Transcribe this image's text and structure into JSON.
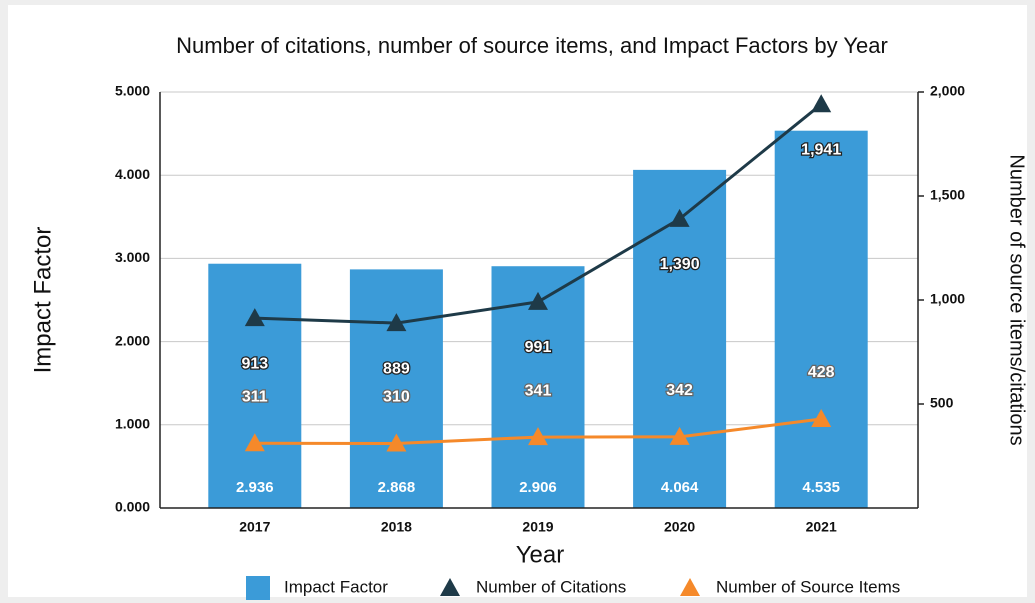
{
  "chart_data": {
    "type": "bar",
    "title": "Number of citations, number of source items, and Impact Factors by Year",
    "x_label": "Year",
    "y_label": "Impact Factor",
    "y2_label": "Number of source items/citations",
    "categories": [
      "2017",
      "2018",
      "2019",
      "2020",
      "2021"
    ],
    "series": [
      {
        "name": "Impact Factor",
        "type": "bar",
        "color": "#3b9bd8",
        "marker": "square",
        "values": [
          2.936,
          2.868,
          2.906,
          4.064,
          4.535
        ]
      },
      {
        "name": "Number of Citations",
        "type": "line",
        "axis": "y2",
        "color": "#1e3a48",
        "marker": "triangle",
        "label_position": "below",
        "values": [
          913,
          889,
          991,
          1390,
          1941
        ],
        "value_labels": [
          "913",
          "889",
          "991",
          "1,390",
          "1,941"
        ]
      },
      {
        "name": "Number of Source Items",
        "type": "line",
        "axis": "y2",
        "color": "#f5892a",
        "marker": "triangle",
        "label_position": "above",
        "values": [
          311,
          310,
          341,
          342,
          428
        ]
      }
    ],
    "ylim": [
      0,
      5
    ],
    "yticks": [
      {
        "value": 0,
        "label": "0.000"
      },
      {
        "value": 1,
        "label": "1.000"
      },
      {
        "value": 2,
        "label": "2.000"
      },
      {
        "value": 3,
        "label": "3.000"
      },
      {
        "value": 4,
        "label": "4.000"
      },
      {
        "value": 5,
        "label": "5.000"
      }
    ],
    "y2lim": [
      0,
      2000
    ],
    "y2ticks": [
      500,
      {
        "value": 1000,
        "label": "1,000"
      },
      {
        "value": 1500,
        "label": "1,500"
      },
      {
        "value": 2000,
        "label": "2,000"
      }
    ],
    "grid": true,
    "legend": "bottom"
  }
}
